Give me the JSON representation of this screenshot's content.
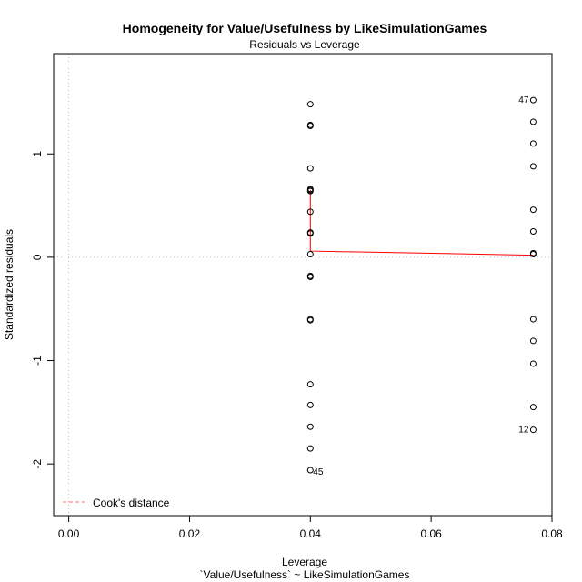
{
  "chart_data": {
    "type": "scatter",
    "title": "Homogeneity for Value/Usefulness by LikeSimulationGames",
    "subtitle": "Residuals vs Leverage",
    "xlabel": "Leverage",
    "xlabel2": "`Value/Usefulness` ~ LikeSimulationGames",
    "ylabel": "Standardized residuals",
    "xlim": [
      -0.0025,
      0.08
    ],
    "ylim": [
      -2.5,
      1.97
    ],
    "xticks": [
      0.0,
      0.02,
      0.04,
      0.06,
      0.08
    ],
    "xtick_labels": [
      "0.00",
      "0.02",
      "0.04",
      "0.06",
      "0.08"
    ],
    "yticks": [
      -2,
      -1,
      0,
      1
    ],
    "ytick_labels": [
      "-2",
      "-1",
      "0",
      "1"
    ],
    "grid": false,
    "reference_lines": {
      "h": 0,
      "v": 0
    },
    "points": [
      {
        "x": 0.04,
        "y": 1.48
      },
      {
        "x": 0.04,
        "y": 1.28
      },
      {
        "x": 0.04,
        "y": 1.27
      },
      {
        "x": 0.04,
        "y": 0.86
      },
      {
        "x": 0.04,
        "y": 0.66
      },
      {
        "x": 0.04,
        "y": 0.65
      },
      {
        "x": 0.04,
        "y": 0.64
      },
      {
        "x": 0.04,
        "y": 0.44
      },
      {
        "x": 0.04,
        "y": 0.24
      },
      {
        "x": 0.04,
        "y": 0.23
      },
      {
        "x": 0.04,
        "y": 0.03
      },
      {
        "x": 0.04,
        "y": -0.18
      },
      {
        "x": 0.04,
        "y": -0.19
      },
      {
        "x": 0.04,
        "y": -0.6
      },
      {
        "x": 0.04,
        "y": -0.61
      },
      {
        "x": 0.04,
        "y": -1.23
      },
      {
        "x": 0.04,
        "y": -1.43
      },
      {
        "x": 0.04,
        "y": -1.64
      },
      {
        "x": 0.04,
        "y": -1.85
      },
      {
        "x": 0.04,
        "y": -2.06,
        "label": "45"
      },
      {
        "x": 0.0769,
        "y": 1.52,
        "label": "47"
      },
      {
        "x": 0.0769,
        "y": 1.31
      },
      {
        "x": 0.0769,
        "y": 1.1
      },
      {
        "x": 0.0769,
        "y": 0.88
      },
      {
        "x": 0.0769,
        "y": 0.46
      },
      {
        "x": 0.0769,
        "y": 0.25
      },
      {
        "x": 0.0769,
        "y": 0.04
      },
      {
        "x": 0.0769,
        "y": 0.03
      },
      {
        "x": 0.0769,
        "y": -0.6
      },
      {
        "x": 0.0769,
        "y": -0.81
      },
      {
        "x": 0.0769,
        "y": -1.03
      },
      {
        "x": 0.0769,
        "y": -1.45
      },
      {
        "x": 0.0769,
        "y": -1.67,
        "label": "12"
      }
    ],
    "smooth_line": {
      "name": "smoother",
      "color": "#ff0000",
      "x": [
        0.04,
        0.04,
        0.04,
        0.0769
      ],
      "y": [
        0.65,
        0.24,
        0.06,
        0.02
      ]
    },
    "legend": {
      "position": "bottom-left",
      "entries": [
        {
          "label": "Cook's distance",
          "color": "#ff6b6b",
          "style": "dashed"
        }
      ]
    }
  }
}
